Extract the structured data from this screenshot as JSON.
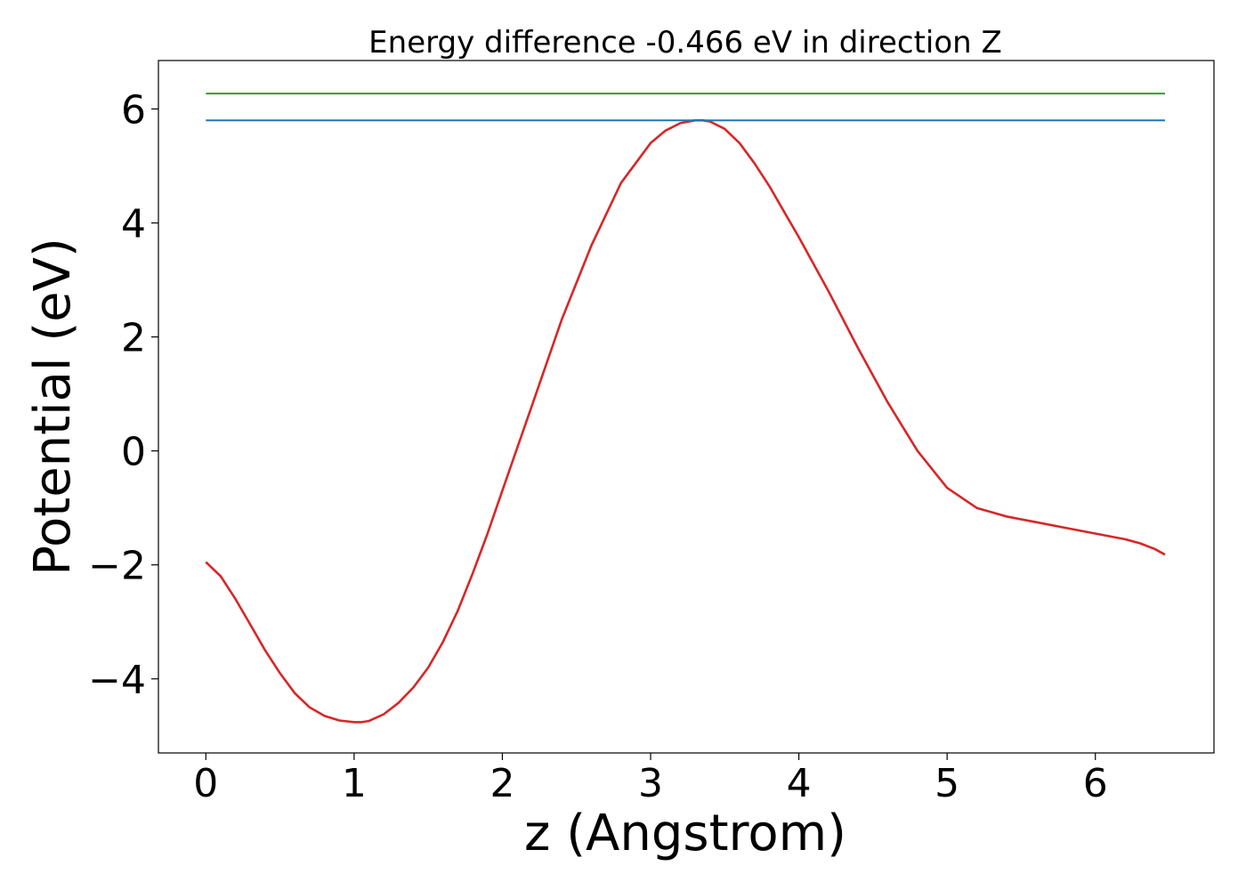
{
  "chart_data": {
    "type": "line",
    "title": "Energy difference -0.466 eV in direction Z",
    "xlabel": "z (Angstrom)",
    "ylabel": "Potential (eV)",
    "xlim": [
      -0.32,
      6.8
    ],
    "ylim": [
      -5.3,
      6.85
    ],
    "xticks": [
      0,
      1,
      2,
      3,
      4,
      5,
      6
    ],
    "yticks": [
      -4,
      -2,
      0,
      2,
      4,
      6
    ],
    "ytick_labels": [
      "−4",
      "−2",
      "0",
      "2",
      "4",
      "6"
    ],
    "grid": false,
    "legend": "none",
    "series": [
      {
        "color": "#d62728",
        "x": [
          0,
          0.1,
          0.2,
          0.3,
          0.4,
          0.5,
          0.6,
          0.7,
          0.8,
          0.9,
          1.0,
          1.05,
          1.1,
          1.2,
          1.3,
          1.4,
          1.5,
          1.6,
          1.7,
          1.8,
          1.9,
          2.0,
          2.2,
          2.4,
          2.6,
          2.8,
          3.0,
          3.1,
          3.2,
          3.3,
          3.35,
          3.4,
          3.5,
          3.6,
          3.7,
          3.8,
          3.9,
          4.0,
          4.2,
          4.4,
          4.6,
          4.8,
          5.0,
          5.2,
          5.4,
          5.6,
          5.8,
          6.0,
          6.2,
          6.3,
          6.4,
          6.47
        ],
        "y": [
          -1.95,
          -2.2,
          -2.6,
          -3.05,
          -3.5,
          -3.9,
          -4.25,
          -4.5,
          -4.65,
          -4.73,
          -4.76,
          -4.76,
          -4.74,
          -4.62,
          -4.42,
          -4.15,
          -3.8,
          -3.35,
          -2.8,
          -2.15,
          -1.45,
          -0.7,
          0.8,
          2.3,
          3.6,
          4.7,
          5.4,
          5.62,
          5.75,
          5.8,
          5.8,
          5.78,
          5.65,
          5.4,
          5.05,
          4.65,
          4.2,
          3.75,
          2.8,
          1.8,
          0.85,
          0.0,
          -0.65,
          -1.0,
          -1.15,
          -1.25,
          -1.35,
          -1.45,
          -1.55,
          -1.62,
          -1.72,
          -1.82
        ]
      },
      {
        "color": "#1f77b4",
        "x": [
          0,
          6.47
        ],
        "y": [
          5.8,
          5.8
        ]
      },
      {
        "color": "#2ca02c",
        "x": [
          0,
          6.47
        ],
        "y": [
          6.27,
          6.27
        ]
      }
    ]
  }
}
